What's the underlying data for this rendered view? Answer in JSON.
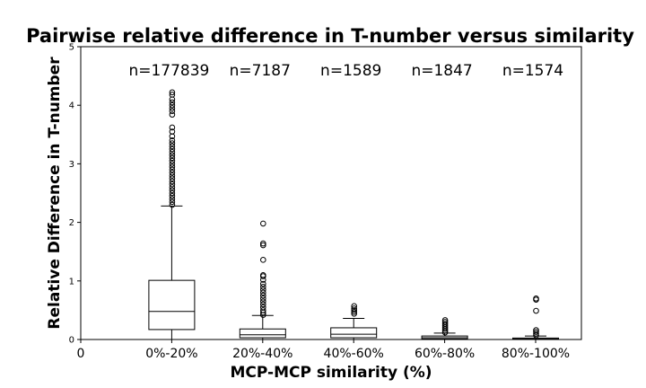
{
  "chart_data": {
    "type": "box",
    "title": "Pairwise relative difference in T-number versus similarity",
    "xlabel": "MCP-MCP similarity (%)",
    "ylabel": "Relative Difference in T-number",
    "x_origin_label": "0",
    "ylim": [
      0,
      5
    ],
    "yticks": [
      "0",
      "1",
      "2",
      "3",
      "4",
      "5"
    ],
    "grid": false,
    "categories": [
      "0%-20%",
      "20%-40%",
      "40%-60%",
      "60%-80%",
      "80%-100%"
    ],
    "annotations": [
      "n=177839",
      "n=7187",
      "n=1589",
      "n=1847",
      "n=1574"
    ],
    "boxes": [
      {
        "q1": 0.17,
        "median": 0.48,
        "q3": 1.01,
        "whisker_low": 0.0,
        "whisker_high": 2.28,
        "outliers": [
          2.3,
          2.35,
          2.4,
          2.45,
          2.5,
          2.55,
          2.6,
          2.65,
          2.7,
          2.75,
          2.8,
          2.85,
          2.9,
          2.95,
          3.0,
          3.05,
          3.1,
          3.15,
          3.2,
          3.25,
          3.3,
          3.35,
          3.4,
          3.47,
          3.55,
          3.62,
          3.84,
          3.9,
          3.95,
          4.0,
          4.05,
          4.1,
          4.18,
          4.22
        ]
      },
      {
        "q1": 0.03,
        "median": 0.08,
        "q3": 0.18,
        "whisker_low": 0.0,
        "whisker_high": 0.41,
        "outliers": [
          0.42,
          0.46,
          0.5,
          0.55,
          0.6,
          0.65,
          0.7,
          0.75,
          0.8,
          0.85,
          0.9,
          0.95,
          1.02,
          1.08,
          1.1,
          1.36,
          1.61,
          1.64,
          1.98
        ]
      },
      {
        "q1": 0.03,
        "median": 0.09,
        "q3": 0.2,
        "whisker_low": 0.0,
        "whisker_high": 0.36,
        "outliers": [
          0.44,
          0.47,
          0.5,
          0.53,
          0.57
        ]
      },
      {
        "q1": 0.01,
        "median": 0.03,
        "q3": 0.06,
        "whisker_low": 0.0,
        "whisker_high": 0.11,
        "outliers": [
          0.12,
          0.15,
          0.18,
          0.21,
          0.24,
          0.27,
          0.3,
          0.33
        ]
      },
      {
        "q1": 0.005,
        "median": 0.01,
        "q3": 0.025,
        "whisker_low": 0.0,
        "whisker_high": 0.06,
        "outliers": [
          0.07,
          0.1,
          0.13,
          0.16,
          0.49,
          0.68,
          0.7
        ]
      }
    ]
  }
}
